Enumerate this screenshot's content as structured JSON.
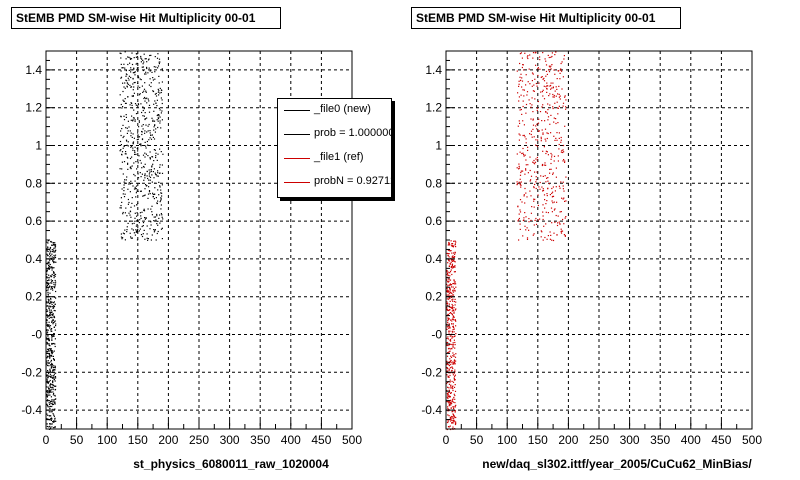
{
  "chart_data": [
    {
      "type": "scatter",
      "title": "StEMB PMD SM-wise Hit Multiplicity 00-01",
      "xlabel": "st_physics_6080011_raw_1020004",
      "ylabel": "",
      "xlim": [
        0,
        500
      ],
      "ylim": [
        -0.5,
        1.5
      ],
      "xticks": [
        "0",
        "50",
        "100",
        "150",
        "200",
        "250",
        "300",
        "350",
        "400",
        "450",
        "500"
      ],
      "yticks": [
        "-0.4",
        "-0.2",
        "-0",
        "0.2",
        "0.4",
        "0.6",
        "0.8",
        "1",
        "1.2",
        "1.4"
      ],
      "grid": true,
      "legend_position": "top-right",
      "legend": [
        {
          "label": "_file0 (new)",
          "color": "#000000"
        },
        {
          "label": "prob = 1.000000",
          "color": "#000000"
        },
        {
          "label": "_file1 (ref)",
          "color": "#cc0000"
        },
        {
          "label": "probN = 0.927124",
          "color": "#cc0000"
        }
      ],
      "series": [
        {
          "color": "#000000",
          "clusters": [
            {
              "x_range": [
                0,
                15
              ],
              "y_range": [
                -0.5,
                0.5
              ],
              "count": 520
            },
            {
              "x_range": [
                120,
                190
              ],
              "y_range": [
                0.5,
                1.5
              ],
              "count": 650
            }
          ]
        }
      ]
    },
    {
      "type": "scatter",
      "title": "StEMB PMD SM-wise Hit Multiplicity 00-01",
      "xlabel": "new/daq_sl302.ittf/year_2005/CuCu62_MinBias/",
      "ylabel": "",
      "xlim": [
        0,
        500
      ],
      "ylim": [
        -0.5,
        1.5
      ],
      "xticks": [
        "0",
        "50",
        "100",
        "150",
        "200",
        "250",
        "300",
        "350",
        "400",
        "450",
        "500"
      ],
      "yticks": [
        "-0.4",
        "-0.2",
        "-0",
        "0.2",
        "0.4",
        "0.6",
        "0.8",
        "1",
        "1.2",
        "1.4"
      ],
      "grid": true,
      "series": [
        {
          "color": "#cc0000",
          "clusters": [
            {
              "x_range": [
                0,
                15
              ],
              "y_range": [
                -0.5,
                0.5
              ],
              "count": 480
            },
            {
              "x_range": [
                115,
                195
              ],
              "y_range": [
                0.5,
                1.5
              ],
              "count": 500
            }
          ]
        }
      ]
    }
  ]
}
